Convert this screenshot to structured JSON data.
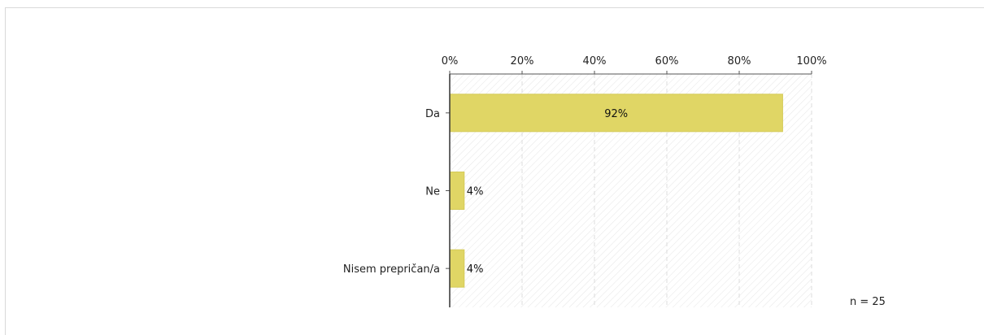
{
  "chart_data": {
    "type": "bar",
    "orientation": "horizontal",
    "categories": [
      "Da",
      "Ne",
      "Nisem prepričan/a"
    ],
    "values": [
      92,
      4,
      4
    ],
    "value_labels": [
      "92%",
      "4%",
      "4%"
    ],
    "xlim": [
      0,
      100
    ],
    "x_ticks": [
      0,
      20,
      40,
      60,
      80,
      100
    ],
    "x_tick_labels": [
      "0%",
      "20%",
      "40%",
      "60%",
      "80%",
      "100%"
    ],
    "grid": true,
    "bar_color": "#e0d665",
    "annotation": "n = 25"
  }
}
